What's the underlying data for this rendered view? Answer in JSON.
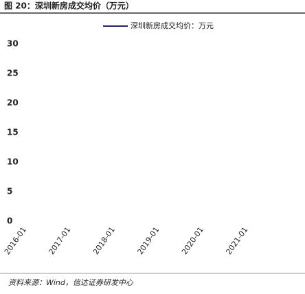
{
  "chart_data": {
    "type": "line",
    "title": "图 20：深圳新房成交均价（万元）",
    "categories": [
      "2016-01",
      "2017-01",
      "2018-01",
      "2019-01",
      "2020-01",
      "2021-01"
    ],
    "series": [
      {
        "name": "深圳新房成交均价：万元",
        "color": "#1f2a5a",
        "values": [
          null,
          null,
          null,
          null,
          null,
          null
        ]
      }
    ],
    "ylim": [
      0,
      30
    ],
    "yticks": [
      0,
      5,
      10,
      15,
      20,
      25,
      30
    ],
    "source": "资料来源：Wind，信达证券研发中心"
  }
}
